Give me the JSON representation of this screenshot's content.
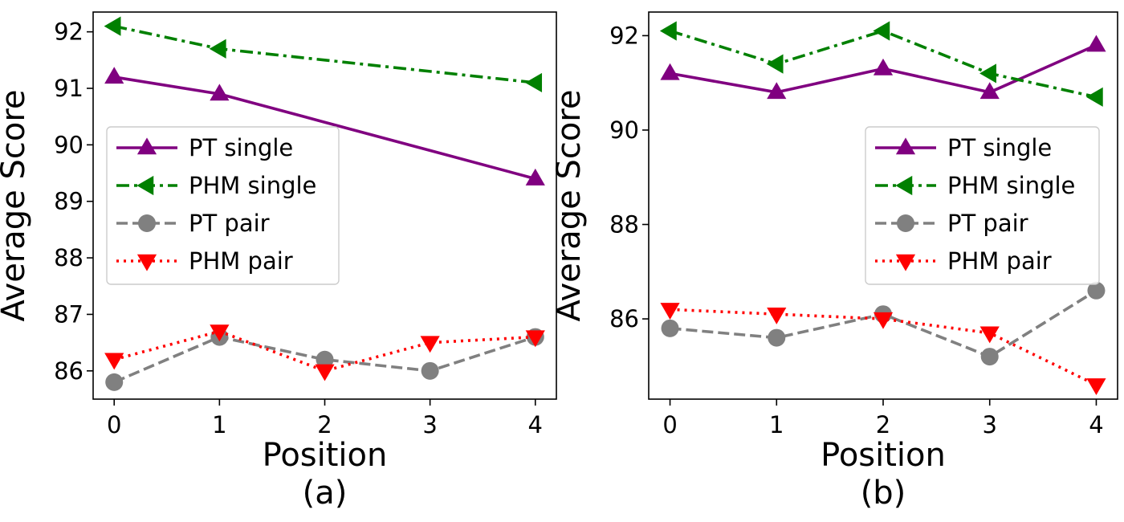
{
  "chart_data": [
    {
      "type": "line",
      "panel_label": "(a)",
      "xlabel": "Position",
      "ylabel": "Average Score",
      "x": [
        0,
        1,
        2,
        3,
        4
      ],
      "xlim": [
        -0.2,
        4.2
      ],
      "ylim": [
        85.5,
        92.35
      ],
      "yticks": [
        86,
        87,
        88,
        89,
        90,
        91,
        92
      ],
      "legend_position": "center-left",
      "series": [
        {
          "name": "PT single",
          "values": [
            91.2,
            90.9,
            90.4,
            89.9,
            89.4
          ],
          "marked": [
            true,
            true,
            false,
            false,
            true
          ],
          "color": "#800080",
          "dash": "solid",
          "marker": "triangle-up"
        },
        {
          "name": "PHM single",
          "values": [
            92.1,
            91.7,
            91.5,
            91.3,
            91.1
          ],
          "marked": [
            true,
            true,
            false,
            false,
            true
          ],
          "color": "#008000",
          "dash": "dashdot",
          "marker": "triangle-left"
        },
        {
          "name": "PT pair",
          "values": [
            85.8,
            86.6,
            86.2,
            86.0,
            86.6
          ],
          "marked": [
            true,
            true,
            true,
            true,
            true
          ],
          "color": "#808080",
          "dash": "dashed",
          "marker": "circle"
        },
        {
          "name": "PHM pair",
          "values": [
            86.2,
            86.7,
            86.0,
            86.5,
            86.6
          ],
          "marked": [
            true,
            true,
            true,
            true,
            true
          ],
          "color": "#ff0000",
          "dash": "dotted",
          "marker": "triangle-down"
        }
      ]
    },
    {
      "type": "line",
      "panel_label": "(b)",
      "xlabel": "Position",
      "ylabel": "Average Score",
      "x": [
        0,
        1,
        2,
        3,
        4
      ],
      "xlim": [
        -0.2,
        4.2
      ],
      "ylim": [
        84.3,
        92.5
      ],
      "yticks": [
        86,
        88,
        90,
        92
      ],
      "legend_position": "center-right",
      "series": [
        {
          "name": "PT single",
          "values": [
            91.2,
            90.8,
            91.3,
            90.8,
            91.8
          ],
          "marked": [
            true,
            true,
            true,
            true,
            true
          ],
          "color": "#800080",
          "dash": "solid",
          "marker": "triangle-up"
        },
        {
          "name": "PHM single",
          "values": [
            92.1,
            91.4,
            92.1,
            91.2,
            90.7
          ],
          "marked": [
            true,
            true,
            true,
            true,
            true
          ],
          "color": "#008000",
          "dash": "dashdot",
          "marker": "triangle-left"
        },
        {
          "name": "PT pair",
          "values": [
            85.8,
            85.6,
            86.1,
            85.2,
            86.6
          ],
          "marked": [
            true,
            true,
            true,
            true,
            true
          ],
          "color": "#808080",
          "dash": "dashed",
          "marker": "circle"
        },
        {
          "name": "PHM pair",
          "values": [
            86.2,
            86.1,
            86.0,
            85.7,
            84.6
          ],
          "marked": [
            true,
            true,
            true,
            true,
            true
          ],
          "color": "#ff0000",
          "dash": "dotted",
          "marker": "triangle-down"
        }
      ]
    }
  ]
}
